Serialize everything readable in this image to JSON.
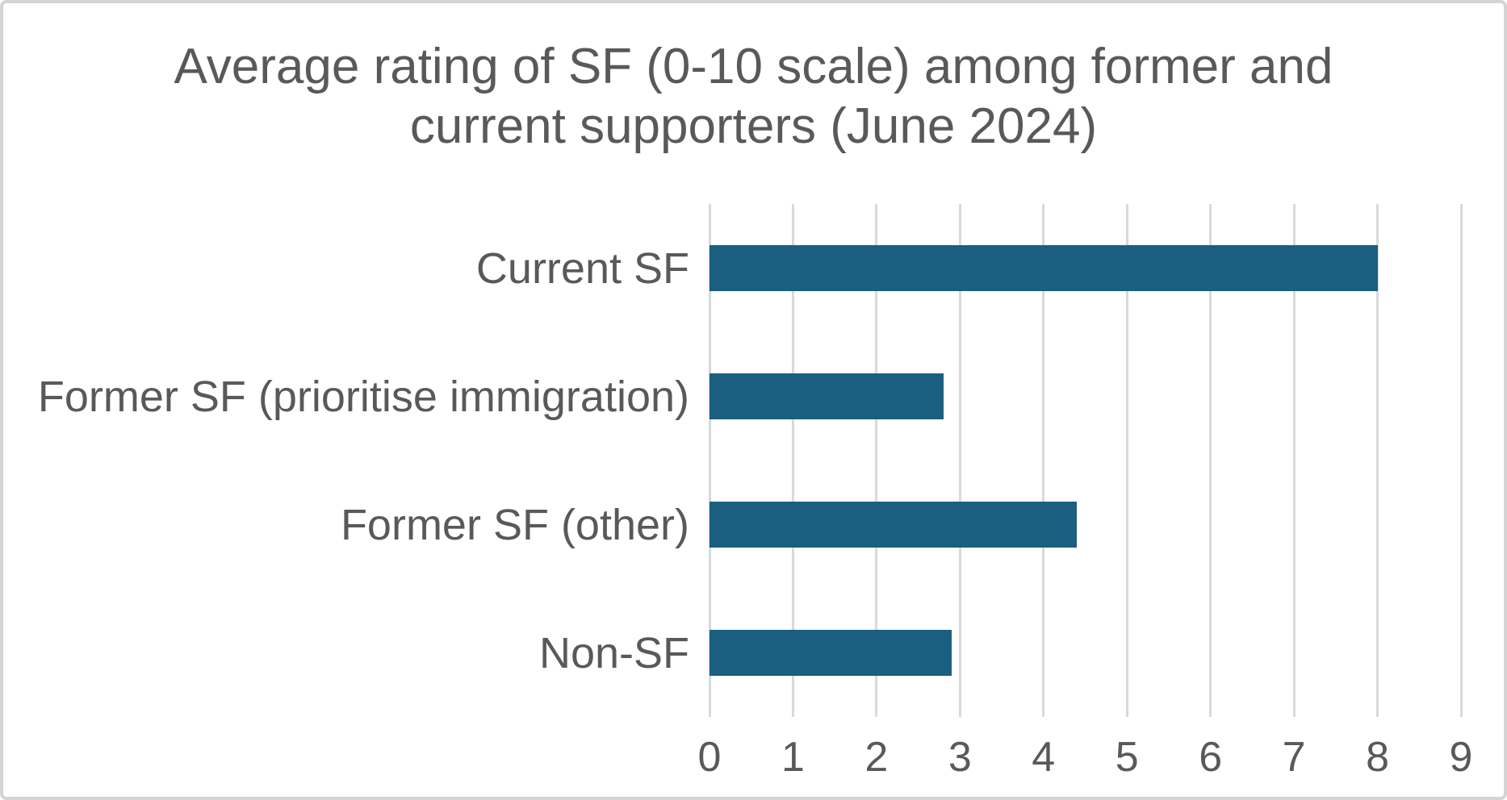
{
  "chart_data": {
    "type": "bar",
    "orientation": "horizontal",
    "title": "Average rating of SF (0-10 scale) among former and current supporters (June 2024)",
    "categories": [
      "Current SF",
      "Former SF (prioritise immigration)",
      "Former SF (other)",
      "Non-SF"
    ],
    "values": [
      8.0,
      2.8,
      4.4,
      2.9
    ],
    "xlabel": "",
    "ylabel": "",
    "xlim": [
      0,
      9
    ],
    "x_ticks": [
      0,
      1,
      2,
      3,
      4,
      5,
      6,
      7,
      8,
      9
    ],
    "grid": "vertical-gridlines-on",
    "legend": "none",
    "colors": {
      "bar": "#1A5F80",
      "text": "#595959",
      "gridline": "#D9D9D9",
      "page_border": "#D4D4D4",
      "background": "#FFFFFF"
    }
  }
}
